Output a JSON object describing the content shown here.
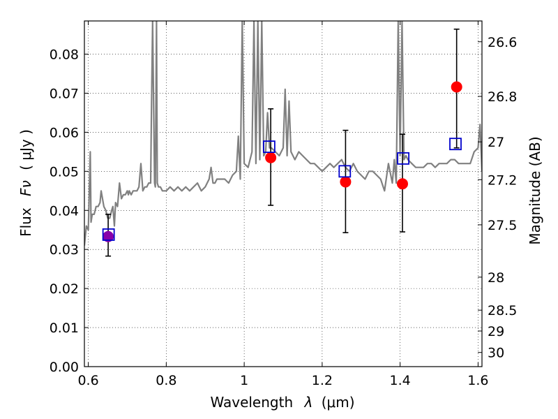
{
  "chart_data": {
    "type": "scatter",
    "xlabel": "Wavelength",
    "xlabel_symbol": "λ",
    "xlabel_unit": "(μm)",
    "ylabel": "Flux",
    "ylabel_symbol": "Fν",
    "ylabel_unit": "( μJy )",
    "ylabel_right": "Magnitude (AB)",
    "xlim": [
      0.59,
      1.61
    ],
    "ylim": [
      0.0,
      0.0885
    ],
    "grid": true,
    "x_ticks": [
      "0.6",
      "0.8",
      "1",
      "1.2",
      "1.4",
      "1.6"
    ],
    "x_tick_values": [
      0.6,
      0.8,
      1.0,
      1.2,
      1.4,
      1.6
    ],
    "y_ticks": [
      "0.00",
      "0.01",
      "0.02",
      "0.03",
      "0.04",
      "0.05",
      "0.06",
      "0.07",
      "0.08"
    ],
    "y_tick_values": [
      0.0,
      0.01,
      0.02,
      0.03,
      0.04,
      0.05,
      0.06,
      0.07,
      0.08
    ],
    "right_ticks": [
      "26.6",
      "26.8",
      "27",
      "27.2",
      "27.5",
      "28",
      "28.5",
      "29",
      "30"
    ],
    "right_tick_values": [
      26.6,
      26.8,
      27.0,
      27.2,
      27.5,
      28.0,
      28.5,
      29.0,
      30.0
    ],
    "spectrum": {
      "color": "#808080",
      "x": [
        0.59,
        0.595,
        0.6,
        0.605,
        0.607,
        0.61,
        0.615,
        0.62,
        0.625,
        0.63,
        0.633,
        0.64,
        0.645,
        0.65,
        0.655,
        0.66,
        0.663,
        0.667,
        0.67,
        0.675,
        0.68,
        0.685,
        0.69,
        0.695,
        0.7,
        0.703,
        0.705,
        0.71,
        0.715,
        0.72,
        0.725,
        0.73,
        0.735,
        0.74,
        0.745,
        0.75,
        0.755,
        0.76,
        0.762,
        0.765,
        0.77,
        0.772,
        0.775,
        0.777,
        0.78,
        0.785,
        0.79,
        0.8,
        0.81,
        0.82,
        0.83,
        0.84,
        0.85,
        0.86,
        0.87,
        0.88,
        0.89,
        0.9,
        0.91,
        0.915,
        0.92,
        0.925,
        0.93,
        0.94,
        0.95,
        0.96,
        0.97,
        0.98,
        0.985,
        0.99,
        0.995,
        1.0,
        1.01,
        1.02,
        1.025,
        1.03,
        1.035,
        1.04,
        1.045,
        1.05,
        1.055,
        1.06,
        1.065,
        1.07,
        1.08,
        1.09,
        1.1,
        1.105,
        1.11,
        1.115,
        1.12,
        1.13,
        1.14,
        1.15,
        1.16,
        1.17,
        1.18,
        1.19,
        1.2,
        1.21,
        1.22,
        1.23,
        1.24,
        1.25,
        1.26,
        1.27,
        1.28,
        1.29,
        1.3,
        1.31,
        1.32,
        1.33,
        1.34,
        1.35,
        1.36,
        1.37,
        1.38,
        1.385,
        1.39,
        1.395,
        1.4,
        1.405,
        1.41,
        1.415,
        1.42,
        1.43,
        1.44,
        1.45,
        1.46,
        1.47,
        1.48,
        1.49,
        1.5,
        1.51,
        1.52,
        1.53,
        1.54,
        1.55,
        1.56,
        1.57,
        1.58,
        1.59,
        1.6,
        1.605,
        1.61
      ],
      "y": [
        0.031,
        0.036,
        0.035,
        0.055,
        0.037,
        0.039,
        0.039,
        0.041,
        0.041,
        0.042,
        0.045,
        0.041,
        0.04,
        0.038,
        0.038,
        0.04,
        0.041,
        0.036,
        0.042,
        0.041,
        0.047,
        0.043,
        0.044,
        0.044,
        0.045,
        0.044,
        0.045,
        0.044,
        0.045,
        0.045,
        0.045,
        0.046,
        0.052,
        0.045,
        0.046,
        0.046,
        0.047,
        0.047,
        0.065,
        0.0885,
        0.047,
        0.046,
        0.0885,
        0.047,
        0.046,
        0.046,
        0.045,
        0.045,
        0.046,
        0.045,
        0.046,
        0.045,
        0.046,
        0.045,
        0.046,
        0.047,
        0.045,
        0.046,
        0.048,
        0.051,
        0.047,
        0.047,
        0.048,
        0.048,
        0.048,
        0.047,
        0.049,
        0.05,
        0.059,
        0.048,
        0.0885,
        0.052,
        0.051,
        0.055,
        0.0885,
        0.052,
        0.0885,
        0.053,
        0.0885,
        0.054,
        0.055,
        0.065,
        0.056,
        0.056,
        0.055,
        0.054,
        0.056,
        0.071,
        0.054,
        0.068,
        0.055,
        0.053,
        0.055,
        0.054,
        0.053,
        0.052,
        0.052,
        0.051,
        0.05,
        0.051,
        0.052,
        0.051,
        0.052,
        0.053,
        0.051,
        0.05,
        0.052,
        0.05,
        0.049,
        0.048,
        0.05,
        0.05,
        0.049,
        0.048,
        0.045,
        0.052,
        0.047,
        0.053,
        0.047,
        0.0885,
        0.054,
        0.0885,
        0.053,
        0.054,
        0.053,
        0.052,
        0.051,
        0.051,
        0.051,
        0.052,
        0.052,
        0.051,
        0.052,
        0.052,
        0.052,
        0.053,
        0.053,
        0.052,
        0.052,
        0.052,
        0.052,
        0.055,
        0.056,
        0.062,
        0.05
      ]
    },
    "series": [
      {
        "marker": "circle",
        "color": "#ff0000",
        "x": [
          0.651,
          1.068,
          1.26,
          1.406,
          1.545
        ],
        "y": [
          0.0333,
          0.0535,
          0.0473,
          0.0468,
          0.0716
        ],
        "err_low": [
          0.0283,
          0.0413,
          0.0343,
          0.0345,
          0.056
        ],
        "err_high": [
          0.039,
          0.066,
          0.0605,
          0.0595,
          0.0864
        ]
      },
      {
        "marker": "square",
        "color": "#0000cc",
        "x": [
          0.652,
          1.064,
          1.258,
          1.408,
          1.542
        ],
        "y": [
          0.0338,
          0.0563,
          0.05,
          0.0533,
          0.057
        ]
      }
    ],
    "overlap_marker_color": "#8800aa"
  }
}
